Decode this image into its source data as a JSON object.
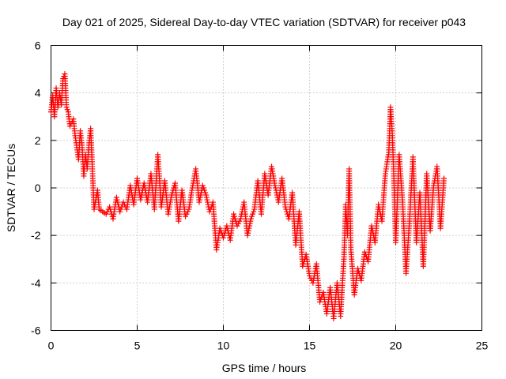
{
  "chart_data": {
    "type": "scatter",
    "title": "Day 021 of 2025, Sidereal Day-to-day VTEC variation (SDTVAR) for receiver p043",
    "xlabel": "GPS time / hours",
    "ylabel": "SDTVAR / TECUs",
    "xlim": [
      0,
      25
    ],
    "ylim": [
      -6,
      6
    ],
    "xticks": [
      0,
      5,
      10,
      15,
      20,
      25
    ],
    "yticks": [
      -6,
      -4,
      -2,
      0,
      2,
      4,
      6
    ],
    "grid": true,
    "marker": "+",
    "color": "#ff0000",
    "series": [
      {
        "name": "SDTVAR",
        "points": [
          [
            0.0,
            3.2
          ],
          [
            0.1,
            3.9
          ],
          [
            0.2,
            3.0
          ],
          [
            0.3,
            4.2
          ],
          [
            0.4,
            3.4
          ],
          [
            0.5,
            4.0
          ],
          [
            0.6,
            3.5
          ],
          [
            0.7,
            4.6
          ],
          [
            0.8,
            4.8
          ],
          [
            0.9,
            3.4
          ],
          [
            1.0,
            3.2
          ],
          [
            1.1,
            2.6
          ],
          [
            1.3,
            2.9
          ],
          [
            1.4,
            2.2
          ],
          [
            1.5,
            1.7
          ],
          [
            1.6,
            1.2
          ],
          [
            1.7,
            2.4
          ],
          [
            1.8,
            1.8
          ],
          [
            1.9,
            0.5
          ],
          [
            2.0,
            1.4
          ],
          [
            2.1,
            0.8
          ],
          [
            2.2,
            1.8
          ],
          [
            2.3,
            2.5
          ],
          [
            2.5,
            -0.9
          ],
          [
            2.7,
            -0.1
          ],
          [
            2.8,
            -0.9
          ],
          [
            3.0,
            -1.0
          ],
          [
            3.2,
            -1.1
          ],
          [
            3.4,
            -0.8
          ],
          [
            3.6,
            -1.3
          ],
          [
            3.8,
            -0.4
          ],
          [
            4.0,
            -1.0
          ],
          [
            4.2,
            -0.6
          ],
          [
            4.4,
            -0.9
          ],
          [
            4.6,
            0.1
          ],
          [
            4.8,
            -0.7
          ],
          [
            5.0,
            0.4
          ],
          [
            5.2,
            -0.5
          ],
          [
            5.4,
            0.2
          ],
          [
            5.6,
            -0.6
          ],
          [
            5.8,
            0.6
          ],
          [
            6.0,
            -0.9
          ],
          [
            6.2,
            1.4
          ],
          [
            6.4,
            -0.8
          ],
          [
            6.6,
            0.3
          ],
          [
            6.8,
            -1.1
          ],
          [
            7.0,
            -0.3
          ],
          [
            7.2,
            0.2
          ],
          [
            7.4,
            -1.4
          ],
          [
            7.6,
            -0.1
          ],
          [
            7.8,
            -1.2
          ],
          [
            8.0,
            -0.9
          ],
          [
            8.2,
            0.0
          ],
          [
            8.4,
            0.8
          ],
          [
            8.6,
            -0.6
          ],
          [
            8.8,
            0.1
          ],
          [
            9.0,
            -0.3
          ],
          [
            9.2,
            -1.0
          ],
          [
            9.4,
            -0.6
          ],
          [
            9.6,
            -2.6
          ],
          [
            9.8,
            -1.7
          ],
          [
            10.0,
            -2.1
          ],
          [
            10.2,
            -1.6
          ],
          [
            10.4,
            -2.2
          ],
          [
            10.6,
            -1.1
          ],
          [
            10.8,
            -1.6
          ],
          [
            11.0,
            -1.3
          ],
          [
            11.2,
            -0.6
          ],
          [
            11.4,
            -2.0
          ],
          [
            11.6,
            -1.3
          ],
          [
            11.8,
            -0.9
          ],
          [
            12.0,
            0.3
          ],
          [
            12.2,
            -1.1
          ],
          [
            12.4,
            0.6
          ],
          [
            12.6,
            -0.3
          ],
          [
            12.8,
            0.9
          ],
          [
            13.0,
            0.1
          ],
          [
            13.2,
            -0.6
          ],
          [
            13.4,
            0.4
          ],
          [
            13.6,
            -0.8
          ],
          [
            13.8,
            -1.3
          ],
          [
            14.0,
            -0.2
          ],
          [
            14.2,
            -2.4
          ],
          [
            14.4,
            -1.0
          ],
          [
            14.6,
            -3.3
          ],
          [
            14.8,
            -2.8
          ],
          [
            15.0,
            -3.7
          ],
          [
            15.2,
            -4.0
          ],
          [
            15.4,
            -3.2
          ],
          [
            15.6,
            -4.8
          ],
          [
            15.8,
            -4.4
          ],
          [
            16.0,
            -5.3
          ],
          [
            16.2,
            -4.2
          ],
          [
            16.4,
            -5.5
          ],
          [
            16.6,
            -4.0
          ],
          [
            16.8,
            -5.4
          ],
          [
            17.0,
            -2.9
          ],
          [
            17.1,
            -0.7
          ],
          [
            17.2,
            -2.0
          ],
          [
            17.3,
            0.8
          ],
          [
            17.4,
            -2.6
          ],
          [
            17.6,
            -4.5
          ],
          [
            17.8,
            -3.4
          ],
          [
            18.0,
            -3.9
          ],
          [
            18.2,
            -2.7
          ],
          [
            18.4,
            -3.1
          ],
          [
            18.6,
            -1.6
          ],
          [
            18.8,
            -2.3
          ],
          [
            19.0,
            -0.7
          ],
          [
            19.2,
            -1.4
          ],
          [
            19.4,
            0.6
          ],
          [
            19.6,
            1.5
          ],
          [
            19.7,
            3.4
          ],
          [
            19.8,
            2.3
          ],
          [
            19.9,
            0.3
          ],
          [
            20.0,
            -2.3
          ],
          [
            20.2,
            1.4
          ],
          [
            20.4,
            -0.6
          ],
          [
            20.6,
            -3.6
          ],
          [
            20.8,
            -1.4
          ],
          [
            21.0,
            1.3
          ],
          [
            21.2,
            -2.3
          ],
          [
            21.4,
            -0.2
          ],
          [
            21.6,
            -3.3
          ],
          [
            21.8,
            0.6
          ],
          [
            22.0,
            -1.8
          ],
          [
            22.2,
            0.1
          ],
          [
            22.4,
            0.9
          ],
          [
            22.6,
            -1.7
          ],
          [
            22.8,
            0.4
          ]
        ]
      }
    ]
  }
}
